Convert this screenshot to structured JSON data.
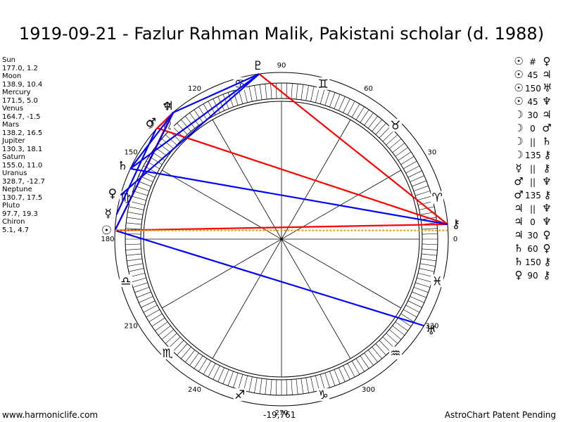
{
  "title": "1919-09-21 - Fazlur Rahman Malik, Pakistani scholar (d. 1988)",
  "planets": [
    {
      "name": "Sun",
      "value": "177.0, 1.2"
    },
    {
      "name": "Moon",
      "value": "138.9, 10.4"
    },
    {
      "name": "Mercury",
      "value": "171.5, 5.0"
    },
    {
      "name": "Venus",
      "value": "164.7, -1.5"
    },
    {
      "name": "Mars",
      "value": "138.2, 16.5"
    },
    {
      "name": "Jupiter",
      "value": "130.3, 18.1"
    },
    {
      "name": "Saturn",
      "value": "155.0, 11.0"
    },
    {
      "name": "Uranus",
      "value": "328.7, -12.7"
    },
    {
      "name": "Neptune",
      "value": "130.7, 17.5"
    },
    {
      "name": "Pluto",
      "value": "97.7, 19.3"
    },
    {
      "name": "Chiron",
      "value": "5.1, 4.7"
    }
  ],
  "aspects": [
    {
      "p1": "☉",
      "type": "#",
      "p2": "♀"
    },
    {
      "p1": "☉",
      "type": "45",
      "p2": "♃"
    },
    {
      "p1": "☉",
      "type": "150",
      "p2": "♅"
    },
    {
      "p1": "☉",
      "type": "45",
      "p2": "♆"
    },
    {
      "p1": "☽",
      "type": "30",
      "p2": "♃"
    },
    {
      "p1": "☽",
      "type": "0",
      "p2": "♂"
    },
    {
      "p1": "☽",
      "type": "||",
      "p2": "♄"
    },
    {
      "p1": "☽",
      "type": "135",
      "p2": "⚷"
    },
    {
      "p1": "☿",
      "type": "||",
      "p2": "⚷"
    },
    {
      "p1": "♂",
      "type": "||",
      "p2": "♆"
    },
    {
      "p1": "♂",
      "type": "135",
      "p2": "⚷"
    },
    {
      "p1": "♃",
      "type": "||",
      "p2": "♆"
    },
    {
      "p1": "♃",
      "type": "0",
      "p2": "♆"
    },
    {
      "p1": "♃",
      "type": "30",
      "p2": "♀"
    },
    {
      "p1": "♄",
      "type": "60",
      "p2": "♀"
    },
    {
      "p1": "♄",
      "type": "150",
      "p2": "⚷"
    },
    {
      "p1": "♀",
      "type": "90",
      "p2": "⚷"
    }
  ],
  "footer": {
    "left": "www.harmoniclife.com",
    "center": "-19,761",
    "right": "AstroChart Patent Pending"
  },
  "wheel": {
    "degree_labels": [
      "0",
      "30",
      "60",
      "90",
      "120",
      "150",
      "180",
      "210",
      "240",
      "270",
      "300",
      "330"
    ],
    "signs": [
      {
        "symbol": "♈",
        "lon": 15
      },
      {
        "symbol": "♉",
        "lon": 45
      },
      {
        "symbol": "♊",
        "lon": 75
      },
      {
        "symbol": "♋",
        "lon": 105
      },
      {
        "symbol": "♌",
        "lon": 135
      },
      {
        "symbol": "♍",
        "lon": 165
      },
      {
        "symbol": "♎",
        "lon": 195
      },
      {
        "symbol": "♏",
        "lon": 225
      },
      {
        "symbol": "♐",
        "lon": 255
      },
      {
        "symbol": "♑",
        "lon": 285
      },
      {
        "symbol": "♒",
        "lon": 315
      },
      {
        "symbol": "♓",
        "lon": 345
      }
    ],
    "planet_glyphs": [
      {
        "symbol": "☉",
        "lon": 177.0
      },
      {
        "symbol": "☽",
        "lon": 138.9
      },
      {
        "symbol": "☿",
        "lon": 171.5
      },
      {
        "symbol": "♀",
        "lon": 164.7
      },
      {
        "symbol": "♂",
        "lon": 138.2
      },
      {
        "symbol": "♃",
        "lon": 130.3
      },
      {
        "symbol": "♄",
        "lon": 155.0
      },
      {
        "symbol": "♅",
        "lon": 328.7
      },
      {
        "symbol": "♆",
        "lon": 130.7
      },
      {
        "symbol": "♇",
        "lon": 97.7
      },
      {
        "symbol": "⚷",
        "lon": 5.1
      }
    ],
    "aspect_lines": [
      {
        "from": 177.0,
        "to": 5.1,
        "color": "#ff0000"
      },
      {
        "from": 97.7,
        "to": 5.1,
        "color": "#ff0000"
      },
      {
        "from": 138.2,
        "to": 5.1,
        "color": "#ff0000"
      },
      {
        "from": 177.0,
        "to": 130.7,
        "color": "#ff0000"
      },
      {
        "from": 138.9,
        "to": 130.3,
        "color": "#ff0000"
      },
      {
        "from": 155.0,
        "to": 5.1,
        "color": "#0000ff"
      },
      {
        "from": 177.0,
        "to": 328.7,
        "color": "#0000ff"
      },
      {
        "from": 155.0,
        "to": 97.7,
        "color": "#0000ff"
      },
      {
        "from": 164.7,
        "to": 97.7,
        "color": "#0000ff"
      },
      {
        "from": 177.0,
        "to": 130.3,
        "color": "#0000ff"
      },
      {
        "from": 130.7,
        "to": 97.7,
        "color": "#0000ff"
      },
      {
        "from": 171.5,
        "to": 138.9,
        "color": "#0000ff"
      },
      {
        "from": 155.0,
        "to": 130.3,
        "color": "#0000ff"
      },
      {
        "from": 177.0,
        "to": 3.0,
        "color": "#d4a017"
      }
    ],
    "colors": {
      "ring_line": "#000000",
      "red": "#ff0000",
      "blue": "#0000ff",
      "gold": "#d4a017"
    }
  }
}
